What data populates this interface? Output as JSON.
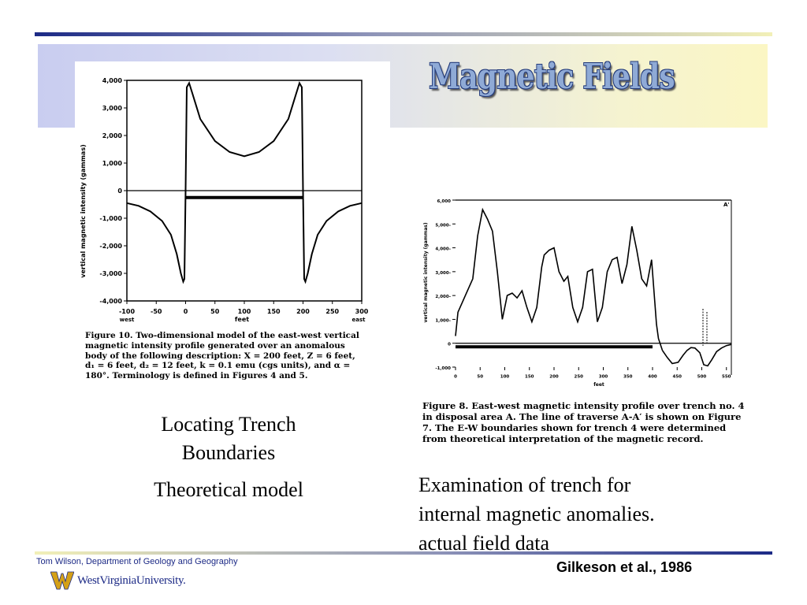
{
  "slide": {
    "title": "Magnetic Fields",
    "left_text": [
      "Locating Trench Boundaries",
      "Theoretical model"
    ],
    "right_text": [
      "Examination of trench for",
      "internal magnetic anomalies.",
      "actual field data"
    ],
    "footer_credit": "Tom Wilson, Department of Geology and Geography",
    "citation": "Gilkeson et al., 1986",
    "logo_text": "WestVirginiaUniversity.",
    "colors": {
      "title_fill": "#8faad6",
      "title_outline": "#233a7a",
      "rule_dark": "#1c2a86",
      "rule_light": "#f2f0b8"
    }
  },
  "figures": {
    "left": {
      "caption": "Figure 10. Two-dimensional model of the east-west vertical magnetic intensity profile generated over an anomalous body of the following description: X = 200 feet, Z = 6 feet, d₁ = 6 feet, d₂ = 12 feet, k = 0.1 emu (cgs units), and α = 180°. Terminology is defined in Figures 4 and 5."
    },
    "right": {
      "caption": "Figure 8. East-west magnetic intensity profile over trench no. 4 in disposal area A. The line of traverse A-A′ is shown on Figure 7. The E-W boundaries shown for trench 4 were determined from theoretical interpretation of the magnetic record."
    }
  },
  "chart_data": [
    {
      "type": "line",
      "ylabel": "vertical magnetic intensity (gammas)",
      "xlabel": "feet",
      "x_end_labels": [
        "west",
        "east"
      ],
      "ylim": [
        -4000,
        4000
      ],
      "xlim": [
        -100,
        300
      ],
      "yticks": [
        -4000,
        -3000,
        -2000,
        -1000,
        0,
        1000,
        2000,
        3000,
        4000
      ],
      "ytick_labels": [
        "-4,000",
        "-3,000",
        "-2,000",
        "-1,000",
        "0",
        "1,000",
        "2,000",
        "3,000",
        "4,000"
      ],
      "xticks": [
        -100,
        -50,
        0,
        50,
        100,
        150,
        200,
        250,
        300
      ],
      "xtick_labels": [
        "-100",
        "-50",
        "0",
        "50",
        "100",
        "150",
        "200",
        "250",
        "300"
      ],
      "series": [
        {
          "x": [
            -100,
            -80,
            -60,
            -40,
            -25,
            -15,
            -8,
            -4,
            -2,
            0,
            2,
            6,
            12,
            25,
            50,
            75,
            100,
            125,
            150,
            175,
            188,
            194,
            198,
            200,
            202,
            204,
            208,
            215,
            225,
            240,
            260,
            280,
            300
          ],
          "y": [
            -450,
            -550,
            -750,
            -1100,
            -1600,
            -2300,
            -3000,
            -3300,
            -3200,
            0,
            3750,
            3900,
            3500,
            2600,
            1800,
            1400,
            1250,
            1400,
            1800,
            2600,
            3500,
            3900,
            3750,
            0,
            -3200,
            -3300,
            -3000,
            -2300,
            -1600,
            -1100,
            -750,
            -550,
            -450
          ]
        }
      ],
      "body": {
        "x": [
          0,
          200
        ],
        "y": -250
      }
    },
    {
      "type": "line",
      "ylabel": "vertical magnetic intensity (gammas)",
      "xlabel": "feet",
      "ylim": [
        -1000,
        6000
      ],
      "xlim": [
        0,
        560
      ],
      "yticks": [
        -1000,
        0,
        1000,
        2000,
        3000,
        4000,
        5000,
        6000
      ],
      "ytick_labels": [
        "-1,000",
        "0",
        "1,000-",
        "2,000-",
        "3,000-",
        "4,000-",
        "5,000-",
        "6,000"
      ],
      "xticks": [
        0,
        50,
        100,
        150,
        200,
        250,
        300,
        350,
        400,
        450,
        500,
        550
      ],
      "xtick_labels": [
        "0",
        "50",
        "100",
        "150",
        "200",
        "250",
        "300",
        "350",
        "400",
        "450",
        "500",
        "550"
      ],
      "annotation": "A'",
      "series": [
        {
          "x": [
            0,
            5,
            20,
            35,
            45,
            55,
            65,
            75,
            85,
            95,
            105,
            115,
            125,
            135,
            145,
            155,
            165,
            175,
            180,
            190,
            200,
            210,
            220,
            228,
            238,
            248,
            258,
            268,
            278,
            288,
            298,
            308,
            318,
            328,
            338,
            348,
            358,
            368,
            378,
            388,
            398,
            408,
            412,
            420
          ],
          "y": [
            300,
            1300,
            2000,
            2700,
            4500,
            5600,
            5200,
            4700,
            3000,
            1000,
            2000,
            2100,
            1900,
            2200,
            1500,
            900,
            1500,
            3200,
            3700,
            3900,
            4000,
            3000,
            2600,
            2800,
            1500,
            900,
            1500,
            3000,
            3100,
            900,
            1500,
            3000,
            3500,
            3600,
            2500,
            3300,
            4900,
            3900,
            2700,
            2400,
            3500,
            800,
            200,
            -300
          ]
        },
        {
          "x": [
            420,
            430,
            440,
            452,
            462,
            470,
            478,
            486,
            496,
            504,
            512,
            520,
            530,
            540,
            550,
            560
          ],
          "y": [
            -300,
            -600,
            -850,
            -800,
            -500,
            -300,
            -180,
            -200,
            -400,
            -900,
            -950,
            -700,
            -350,
            -200,
            -100,
            -50
          ]
        }
      ],
      "body": {
        "x": [
          0,
          400
        ],
        "y": -150
      }
    }
  ]
}
